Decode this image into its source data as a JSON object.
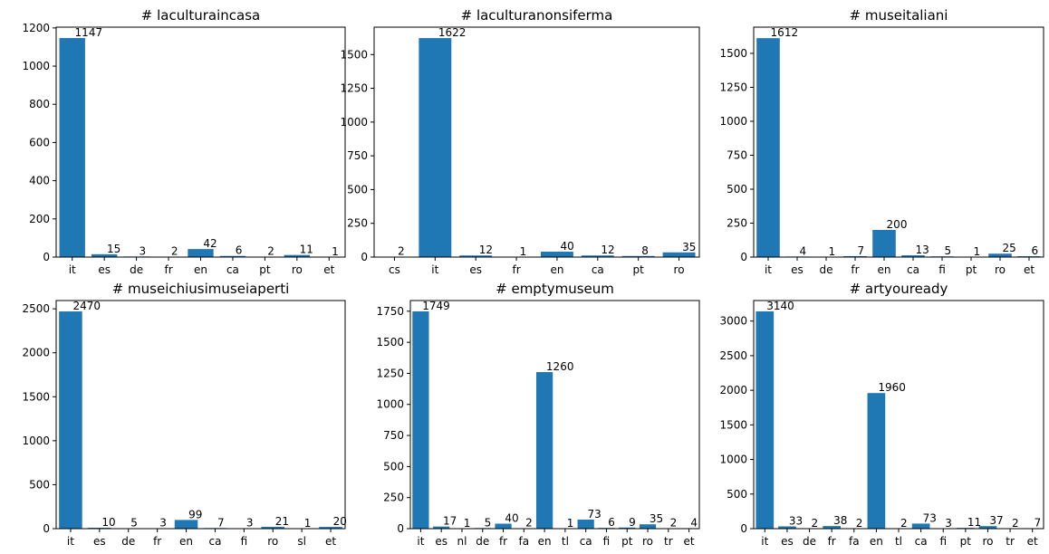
{
  "bar_color": "#1f77b4",
  "chart_data": [
    {
      "type": "bar",
      "title": "# laculturaincasa",
      "categories": [
        "it",
        "es",
        "de",
        "fr",
        "en",
        "ca",
        "pt",
        "ro",
        "et"
      ],
      "values": [
        1147,
        15,
        3,
        2,
        42,
        6,
        2,
        11,
        1
      ],
      "ylim": [
        0,
        1204
      ],
      "yticks": [
        0,
        200,
        400,
        600,
        800,
        1000,
        1200
      ],
      "grid": false
    },
    {
      "type": "bar",
      "title": "# laculturanonsiferma",
      "categories": [
        "cs",
        "it",
        "es",
        "fr",
        "en",
        "ca",
        "pt",
        "ro"
      ],
      "values": [
        2,
        1622,
        12,
        1,
        40,
        12,
        8,
        35
      ],
      "ylim": [
        0,
        1703
      ],
      "yticks": [
        0,
        250,
        500,
        750,
        1000,
        1250,
        1500
      ],
      "grid": false
    },
    {
      "type": "bar",
      "title": "# museitaliani",
      "categories": [
        "it",
        "es",
        "de",
        "fr",
        "en",
        "ca",
        "fi",
        "pt",
        "ro",
        "et"
      ],
      "values": [
        1612,
        4,
        1,
        7,
        200,
        13,
        5,
        1,
        25,
        6
      ],
      "ylim": [
        0,
        1693
      ],
      "yticks": [
        0,
        250,
        500,
        750,
        1000,
        1250,
        1500
      ],
      "grid": false
    },
    {
      "type": "bar",
      "title": "# museichiusimuseiaperti",
      "categories": [
        "it",
        "es",
        "de",
        "fr",
        "en",
        "ca",
        "fi",
        "ro",
        "sl",
        "et"
      ],
      "values": [
        2470,
        10,
        5,
        3,
        99,
        7,
        3,
        21,
        1,
        20
      ],
      "ylim": [
        0,
        2594
      ],
      "yticks": [
        0,
        500,
        1000,
        1500,
        2000,
        2500
      ],
      "grid": false
    },
    {
      "type": "bar",
      "title": "# emptymuseum",
      "categories": [
        "it",
        "es",
        "nl",
        "de",
        "fr",
        "fa",
        "en",
        "tl",
        "ca",
        "fi",
        "pt",
        "ro",
        "tr",
        "et"
      ],
      "values": [
        1749,
        17,
        1,
        5,
        40,
        2,
        1260,
        1,
        73,
        6,
        9,
        35,
        2,
        4
      ],
      "ylim": [
        0,
        1836
      ],
      "yticks": [
        0,
        250,
        500,
        750,
        1000,
        1250,
        1500,
        1750
      ],
      "grid": false
    },
    {
      "type": "bar",
      "title": "# artyouready",
      "categories": [
        "it",
        "es",
        "de",
        "fr",
        "fa",
        "en",
        "tl",
        "ca",
        "fi",
        "pt",
        "ro",
        "tr",
        "et"
      ],
      "values": [
        3140,
        33,
        2,
        38,
        2,
        1960,
        2,
        73,
        3,
        11,
        37,
        2,
        7
      ],
      "ylim": [
        0,
        3297
      ],
      "yticks": [
        0,
        500,
        1000,
        1500,
        2000,
        2500,
        3000
      ],
      "grid": false
    }
  ]
}
